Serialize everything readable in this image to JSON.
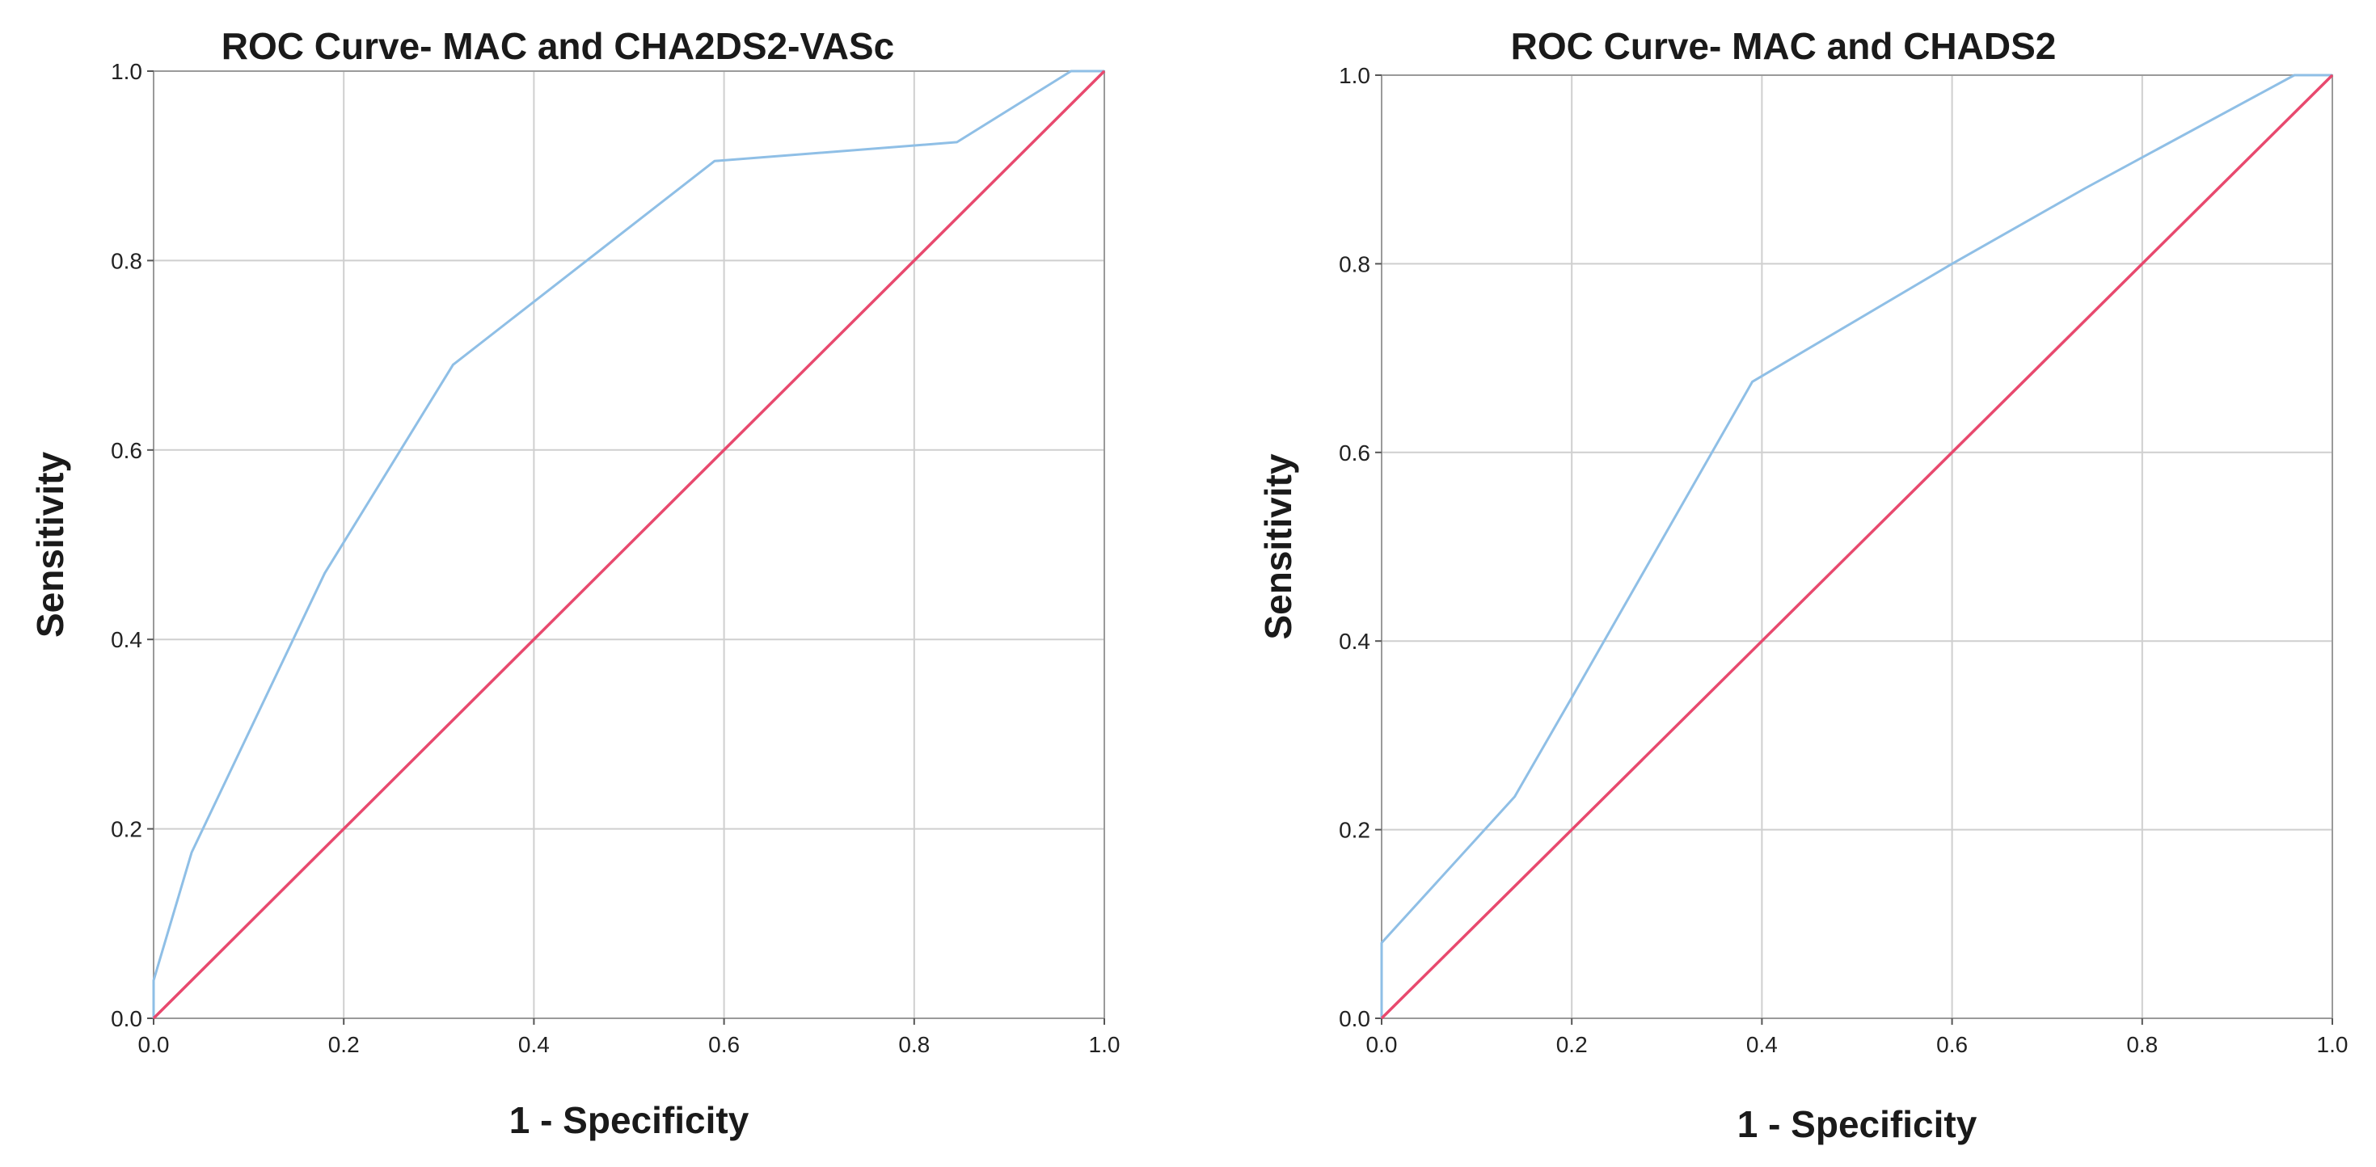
{
  "chart_data": [
    {
      "type": "line",
      "title": "ROC Curve- MAC and CHA2DS2-VASc",
      "xlabel": "1 - Specificity",
      "ylabel": "Sensitivity",
      "xlim": [
        0,
        1
      ],
      "ylim": [
        0,
        1
      ],
      "xticks": [
        "0.0",
        "0.2",
        "0.4",
        "0.6",
        "0.8",
        "1.0"
      ],
      "yticks": [
        "0.0",
        "0.2",
        "0.4",
        "0.6",
        "0.8",
        "1.0"
      ],
      "grid": true,
      "series": [
        {
          "color": "#8fbfe6",
          "x": [
            0.0,
            0.0,
            0.04,
            0.18,
            0.315,
            0.59,
            0.845,
            0.965,
            1.0
          ],
          "y": [
            0.0,
            0.04,
            0.175,
            0.47,
            0.69,
            0.905,
            0.925,
            1.0,
            1.0
          ]
        },
        {
          "color": "#e8496e",
          "x": [
            0,
            1
          ],
          "y": [
            0,
            1
          ]
        }
      ]
    },
    {
      "type": "line",
      "title": "ROC Curve- MAC and CHADS2",
      "xlabel": "1 - Specificity",
      "ylabel": "Sensitivity",
      "xlim": [
        0,
        1
      ],
      "ylim": [
        0,
        1
      ],
      "xticks": [
        "0.0",
        "0.2",
        "0.4",
        "0.6",
        "0.8",
        "1.0"
      ],
      "yticks": [
        "0.0",
        "0.2",
        "0.4",
        "0.6",
        "0.8",
        "1.0"
      ],
      "grid": true,
      "series": [
        {
          "color": "#8fbfe6",
          "x": [
            0.0,
            0.0,
            0.14,
            0.2,
            0.39,
            0.6,
            0.74,
            0.96,
            1.0
          ],
          "y": [
            0.0,
            0.08,
            0.235,
            0.34,
            0.675,
            0.8,
            0.88,
            1.0,
            1.0
          ]
        },
        {
          "color": "#e8496e",
          "x": [
            0,
            1
          ],
          "y": [
            0,
            1
          ]
        }
      ]
    }
  ]
}
